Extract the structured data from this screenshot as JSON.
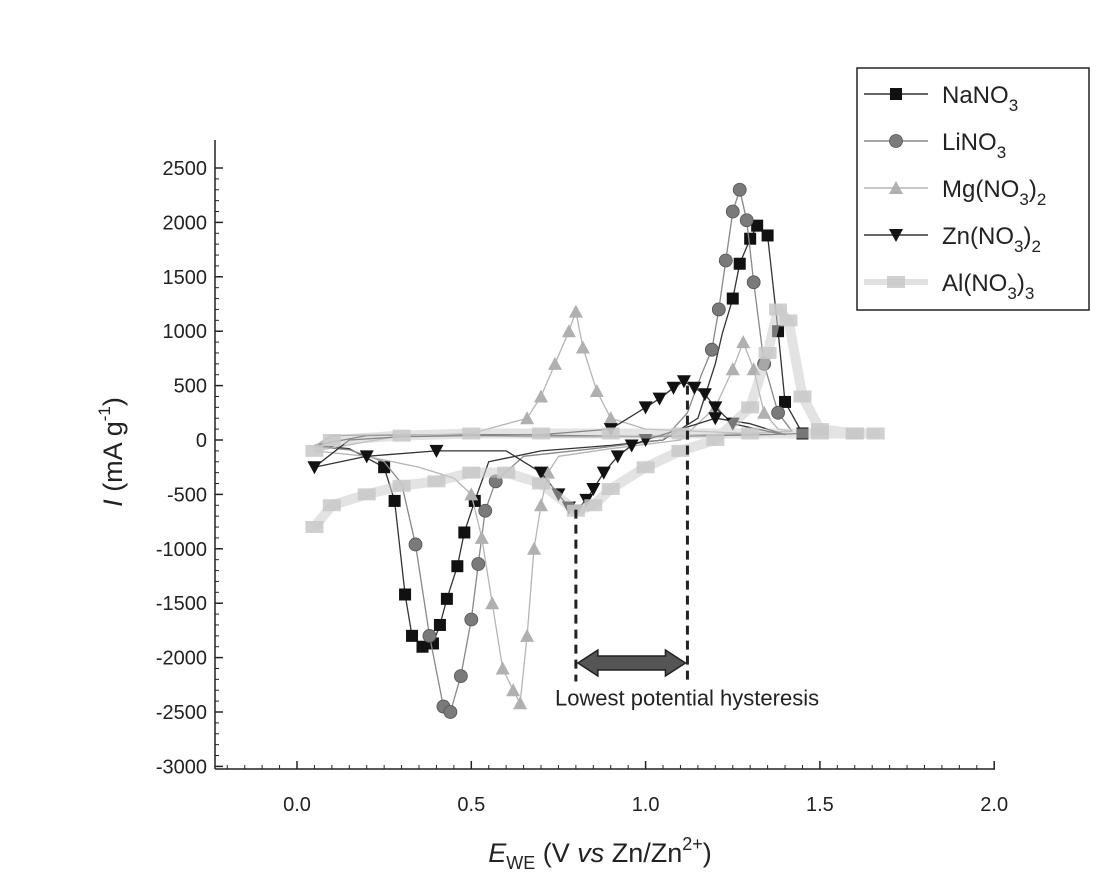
{
  "chart_data": {
    "type": "line",
    "title": "",
    "xlabel": {
      "symbol": "E",
      "subscript": "WE",
      "rest": " (V ",
      "vs": "vs",
      "tail": " Zn/Zn",
      "sup": "2+",
      "close": ")"
    },
    "ylabel": {
      "symbol": "I",
      "rest": " (mA g",
      "sup": "-1",
      "close": ")"
    },
    "xlim": [
      -0.25,
      2.0
    ],
    "ylim": [
      -3000,
      2700
    ],
    "xticks": [
      0.0,
      0.5,
      1.0,
      1.5,
      2.0
    ],
    "xtick_labels": [
      "0.0",
      "0.5",
      "1.0",
      "1.5",
      "2.0"
    ],
    "yticks": [
      2500,
      2000,
      1500,
      1000,
      500,
      0,
      -500,
      -1000,
      -1500,
      -2000,
      -2500,
      -3000
    ],
    "ytick_labels": [
      "2500",
      "2000",
      "1500",
      "1000",
      "500",
      "0",
      "-500",
      "-1000",
      "-1500",
      "-2000",
      "-2500",
      "-3000"
    ],
    "legend_position": "top-right",
    "series": [
      {
        "name": "NaNO3",
        "label_main": "NaNO",
        "label_sub": "3",
        "label_tail": "",
        "marker": "square",
        "color": "#111111",
        "line_color": "#333333",
        "x": [
          0.05,
          0.15,
          0.25,
          0.28,
          0.31,
          0.33,
          0.36,
          0.39,
          0.41,
          0.43,
          0.46,
          0.48,
          0.51,
          0.55,
          0.7,
          0.9,
          1.05,
          1.15,
          1.2,
          1.22,
          1.25,
          1.27,
          1.3,
          1.32,
          1.35,
          1.38,
          1.4,
          1.45,
          1.35,
          1.2,
          1.0,
          0.8,
          0.6,
          0.4,
          0.2,
          0.05
        ],
        "y": [
          -50,
          -80,
          -250,
          -560,
          -1420,
          -1800,
          -1900,
          -1870,
          -1700,
          -1460,
          -1160,
          -850,
          -560,
          -200,
          -100,
          -50,
          0,
          200,
          700,
          980,
          1300,
          1620,
          1850,
          1970,
          1880,
          1000,
          350,
          60,
          50,
          40,
          30,
          40,
          50,
          50,
          40,
          -50
        ],
        "marker_idx": [
          2,
          3,
          4,
          5,
          6,
          7,
          8,
          9,
          10,
          11,
          12,
          20,
          21,
          22,
          23,
          24,
          25,
          26,
          27
        ]
      },
      {
        "name": "LiNO3",
        "label_main": "LiNO",
        "label_sub": "3",
        "label_tail": "",
        "marker": "circle",
        "color": "#7a7a7a",
        "line_color": "#888888",
        "x": [
          0.05,
          0.15,
          0.25,
          0.3,
          0.34,
          0.38,
          0.42,
          0.44,
          0.47,
          0.5,
          0.52,
          0.54,
          0.57,
          0.65,
          0.85,
          1.05,
          1.12,
          1.16,
          1.19,
          1.21,
          1.23,
          1.25,
          1.27,
          1.29,
          1.31,
          1.34,
          1.38,
          1.42,
          1.3,
          1.1,
          0.9,
          0.7,
          0.5,
          0.3,
          0.1,
          0.05
        ],
        "y": [
          -60,
          -90,
          -200,
          -400,
          -960,
          -1800,
          -2450,
          -2500,
          -2170,
          -1650,
          -1140,
          -650,
          -380,
          -150,
          -80,
          0,
          250,
          600,
          830,
          1200,
          1650,
          2100,
          2300,
          2020,
          1450,
          700,
          250,
          80,
          60,
          40,
          30,
          30,
          40,
          50,
          40,
          -60
        ],
        "marker_idx": [
          4,
          5,
          6,
          7,
          8,
          9,
          10,
          11,
          12,
          18,
          19,
          20,
          21,
          22,
          23,
          24,
          25,
          26
        ]
      },
      {
        "name": "Mg(NO3)2",
        "label_main": "Mg(NO",
        "label_sub": "3",
        "label_tail": ")2",
        "marker": "triangle-up",
        "color": "#b0b0b0",
        "line_color": "#b5b5b5",
        "x": [
          0.05,
          0.2,
          0.35,
          0.45,
          0.5,
          0.53,
          0.56,
          0.59,
          0.62,
          0.64,
          0.66,
          0.68,
          0.7,
          0.72,
          0.75,
          0.9,
          1.1,
          1.2,
          1.25,
          1.28,
          1.31,
          1.34,
          1.38,
          1.42,
          1.3,
          1.0,
          0.9,
          0.86,
          0.82,
          0.8,
          0.78,
          0.74,
          0.7,
          0.66,
          0.5,
          0.3,
          0.05
        ],
        "y": [
          -100,
          -150,
          -250,
          -350,
          -500,
          -900,
          -1500,
          -2100,
          -2300,
          -2420,
          -1800,
          -1000,
          -600,
          -300,
          -150,
          -80,
          0,
          300,
          650,
          900,
          650,
          250,
          100,
          80,
          60,
          100,
          200,
          450,
          850,
          1180,
          1000,
          700,
          400,
          200,
          60,
          40,
          -100
        ],
        "marker_idx": [
          4,
          5,
          6,
          7,
          8,
          9,
          10,
          11,
          12,
          13,
          17,
          18,
          19,
          20,
          21,
          26,
          27,
          28,
          29,
          30,
          31,
          32,
          33
        ]
      },
      {
        "name": "Zn(NO3)2",
        "label_main": "Zn(NO",
        "label_sub": "3",
        "label_tail": ")2",
        "marker": "triangle-down",
        "color": "#111111",
        "line_color": "#333333",
        "x": [
          0.05,
          0.2,
          0.4,
          0.6,
          0.7,
          0.75,
          0.78,
          0.8,
          0.83,
          0.85,
          0.88,
          0.92,
          0.96,
          1.0,
          1.05,
          1.1,
          1.15,
          1.2,
          1.3,
          1.4,
          1.35,
          1.25,
          1.2,
          1.17,
          1.14,
          1.11,
          1.08,
          1.04,
          1.0,
          0.9,
          0.7,
          0.5,
          0.3,
          0.15,
          0.05
        ],
        "y": [
          -250,
          -150,
          -100,
          -100,
          -300,
          -500,
          -620,
          -650,
          -550,
          -450,
          -300,
          -150,
          -50,
          0,
          50,
          100,
          150,
          200,
          150,
          50,
          80,
          150,
          300,
          420,
          480,
          540,
          480,
          380,
          300,
          100,
          50,
          40,
          30,
          0,
          -250
        ],
        "marker_idx": [
          0,
          1,
          2,
          4,
          5,
          6,
          7,
          8,
          9,
          10,
          11,
          12,
          13,
          17,
          21,
          22,
          23,
          24,
          25,
          26,
          27,
          28,
          29
        ]
      },
      {
        "name": "Al(NO3)3",
        "label_main": "Al(NO",
        "label_sub": "3",
        "label_tail": ")3",
        "marker": "cloud",
        "color": "#c8c8c8",
        "line_color": "#cccccc",
        "x": [
          0.05,
          0.1,
          0.2,
          0.3,
          0.4,
          0.5,
          0.6,
          0.7,
          0.8,
          0.85,
          0.9,
          1.0,
          1.1,
          1.2,
          1.3,
          1.35,
          1.38,
          1.41,
          1.45,
          1.5,
          1.6,
          1.66,
          1.6,
          1.5,
          1.3,
          1.1,
          0.9,
          0.7,
          0.5,
          0.3,
          0.1,
          0.05
        ],
        "y": [
          -800,
          -600,
          -500,
          -420,
          -380,
          -300,
          -300,
          -400,
          -650,
          -600,
          -450,
          -250,
          -100,
          0,
          300,
          800,
          1200,
          1100,
          400,
          100,
          60,
          60,
          60,
          60,
          60,
          60,
          60,
          60,
          60,
          40,
          0,
          -100
        ],
        "marker_idx": [
          0,
          1,
          2,
          3,
          4,
          5,
          6,
          7,
          8,
          9,
          10,
          11,
          12,
          13,
          14,
          15,
          16,
          17,
          18,
          19,
          20,
          21,
          22,
          23,
          24,
          25,
          26,
          27,
          28,
          29,
          30,
          31
        ]
      }
    ],
    "annotation": {
      "text": "Lowest potential hysteresis",
      "x_left": 0.8,
      "x_right": 1.12,
      "left_y": -640,
      "right_y": 500,
      "arrow_y": -2050,
      "text_x": 0.74,
      "text_y": -2440
    }
  }
}
